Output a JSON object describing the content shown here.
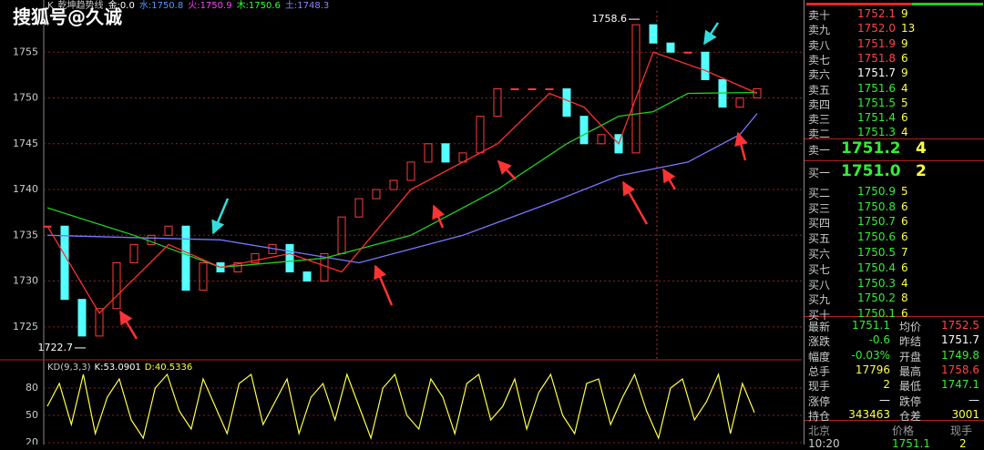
{
  "watermark": "搜狐号@久诚",
  "header": {
    "items": [
      "K",
      "乾坤趋势线",
      "金:0.0",
      "水:1750.8",
      "火:1750.9",
      "木:1750.6",
      "土:1748.3"
    ],
    "colors": [
      "#cccccc",
      "#cccccc",
      "#ffffff",
      "#5599ff",
      "#ff44ff",
      "#33ff33",
      "#8888ff"
    ]
  },
  "chart": {
    "type": "candlestick",
    "ylim": [
      1721.4,
      1760.7
    ],
    "yticks": [
      1725,
      1730,
      1735,
      1740,
      1745,
      1750,
      1755
    ],
    "close": [
      1736,
      1728,
      1724,
      1727,
      1732,
      1734,
      1735,
      1736,
      1729,
      1732,
      1731,
      1732,
      1733,
      1734,
      1731,
      1730,
      1733,
      1737,
      1739,
      1740,
      1741,
      1743,
      1745,
      1743,
      1744,
      1748,
      1751,
      1751,
      1751,
      1751,
      1748,
      1745,
      1746,
      1744,
      1758,
      1756,
      1755,
      1755,
      1752,
      1749,
      1750,
      1751
    ],
    "up_color": "#ff3b3b",
    "down_color": "#54ffff",
    "lines": [
      {
        "color": "#7777ff",
        "x": [
          0,
          10,
          18,
          24,
          29,
          33,
          37,
          40,
          41
        ],
        "values": [
          1735,
          1734.5,
          1732,
          1735,
          1738.5,
          1741.5,
          1743,
          1746,
          1748.3
        ]
      },
      {
        "color": "#22cc22",
        "x": [
          0,
          5,
          10,
          16,
          21,
          26,
          30,
          33,
          35,
          37,
          41
        ],
        "values": [
          1738,
          1735,
          1731.5,
          1732.5,
          1735,
          1740,
          1745,
          1748,
          1748.5,
          1750.5,
          1750.6
        ]
      },
      {
        "color": "#ff3030",
        "x": [
          0,
          3,
          7,
          10,
          14,
          17,
          21,
          26,
          29,
          31,
          33,
          35,
          38,
          41
        ],
        "values": [
          1736,
          1726.5,
          1734,
          1731.5,
          1733,
          1731,
          1740,
          1745,
          1750.5,
          1749,
          1745,
          1755,
          1753,
          1750.5
        ]
      }
    ],
    "annotations": [
      {
        "text": "1758.6",
        "x": 34,
        "value": 1758.6
      },
      {
        "text": "1722.7",
        "x": 2,
        "value": 1722.7
      }
    ]
  },
  "indicator": {
    "type": "line",
    "labels": [
      "KD(9,3,3)",
      "K:53.0901",
      "D:40.5336"
    ],
    "label_colors": [
      "#cccccc",
      "#ffffff",
      "#ffff44"
    ],
    "ylim": [
      18,
      111
    ],
    "yticks": [
      20,
      50,
      80
    ],
    "color": "#ffff44",
    "values": [
      60,
      85,
      40,
      95,
      30,
      70,
      90,
      45,
      25,
      80,
      95,
      55,
      35,
      90,
      60,
      30,
      85,
      95,
      40,
      65,
      90,
      30,
      70,
      85,
      45,
      95,
      60,
      25,
      80,
      95,
      50,
      35,
      90,
      70,
      30,
      85,
      95,
      45,
      60,
      90,
      35,
      75,
      95,
      50,
      30,
      85,
      90,
      40,
      70,
      95,
      55,
      25,
      80,
      90,
      45,
      65,
      95,
      30,
      85,
      53.09
    ]
  },
  "order_book": {
    "asks": [
      {
        "label": "卖十",
        "price": "1752.1",
        "volume": "9",
        "color": "#ff4444"
      },
      {
        "label": "卖九",
        "price": "1752.0",
        "volume": "13",
        "color": "#ff4444"
      },
      {
        "label": "卖八",
        "price": "1751.9",
        "volume": "9",
        "color": "#ff4444"
      },
      {
        "label": "卖七",
        "price": "1751.8",
        "volume": "6",
        "color": "#ff4444"
      },
      {
        "label": "卖六",
        "price": "1751.7",
        "volume": "9",
        "color": "#ffffff"
      },
      {
        "label": "卖五",
        "price": "1751.6",
        "volume": "4",
        "color": "#33ee33"
      },
      {
        "label": "卖四",
        "price": "1751.5",
        "volume": "5",
        "color": "#33ee33"
      },
      {
        "label": "卖三",
        "price": "1751.4",
        "volume": "6",
        "color": "#33ee33"
      },
      {
        "label": "卖二",
        "price": "1751.3",
        "volume": "4",
        "color": "#33ee33"
      },
      {
        "label": "卖一",
        "price": "1751.2",
        "volume": "4",
        "color": "#33ee33"
      }
    ],
    "bids": [
      {
        "label": "买一",
        "price": "1751.0",
        "volume": "2",
        "color": "#33ee33"
      },
      {
        "label": "买二",
        "price": "1750.9",
        "volume": "5",
        "color": "#33ee33"
      },
      {
        "label": "买三",
        "price": "1750.8",
        "volume": "6",
        "color": "#33ee33"
      },
      {
        "label": "买四",
        "price": "1750.7",
        "volume": "6",
        "color": "#33ee33"
      },
      {
        "label": "买五",
        "price": "1750.6",
        "volume": "6",
        "color": "#33ee33"
      },
      {
        "label": "买六",
        "price": "1750.5",
        "volume": "7",
        "color": "#33ee33"
      },
      {
        "label": "买七",
        "price": "1750.4",
        "volume": "6",
        "color": "#33ee33"
      },
      {
        "label": "买八",
        "price": "1750.3",
        "volume": "4",
        "color": "#33ee33"
      },
      {
        "label": "买九",
        "price": "1750.2",
        "volume": "8",
        "color": "#33ee33"
      },
      {
        "label": "买十",
        "price": "1750.1",
        "volume": "6",
        "color": "#33ee33"
      }
    ]
  },
  "stats": [
    [
      {
        "text": "最新"
      },
      {
        "text": "1751.1",
        "color": "#33ee33"
      },
      {
        "text": "均价"
      },
      {
        "text": "1752.5",
        "color": "#ff4444"
      }
    ],
    [
      {
        "text": "涨跌"
      },
      {
        "text": "-0.6",
        "color": "#33ee33"
      },
      {
        "text": "昨结"
      },
      {
        "text": "1751.7",
        "color": "#ffffff"
      }
    ],
    [
      {
        "text": "幅度"
      },
      {
        "text": "-0.03%",
        "color": "#33ee33"
      },
      {
        "text": "开盘"
      },
      {
        "text": "1749.8",
        "color": "#33ee33"
      }
    ],
    [
      {
        "text": "总手"
      },
      {
        "text": "17796",
        "color": "#ffff44"
      },
      {
        "text": "最高"
      },
      {
        "text": "1758.6",
        "color": "#ff4444"
      }
    ],
    [
      {
        "text": "现手"
      },
      {
        "text": "2",
        "color": "#ffff44"
      },
      {
        "text": "最低"
      },
      {
        "text": "1747.1",
        "color": "#33ee33"
      }
    ],
    [
      {
        "text": "涨停"
      },
      {
        "text": "—",
        "color": "#ffffff"
      },
      {
        "text": "跌停"
      },
      {
        "text": "—",
        "color": "#ffffff"
      }
    ],
    [
      {
        "text": "持仓"
      },
      {
        "text": "343463",
        "color": "#ffff44"
      },
      {
        "text": "仓差"
      },
      {
        "text": "3001",
        "color": "#ffff44"
      }
    ]
  ],
  "trades": {
    "columns": [
      "北京",
      "价格",
      "现手"
    ],
    "rows": [
      [
        "10:20",
        "1751.1",
        "2"
      ]
    ]
  }
}
